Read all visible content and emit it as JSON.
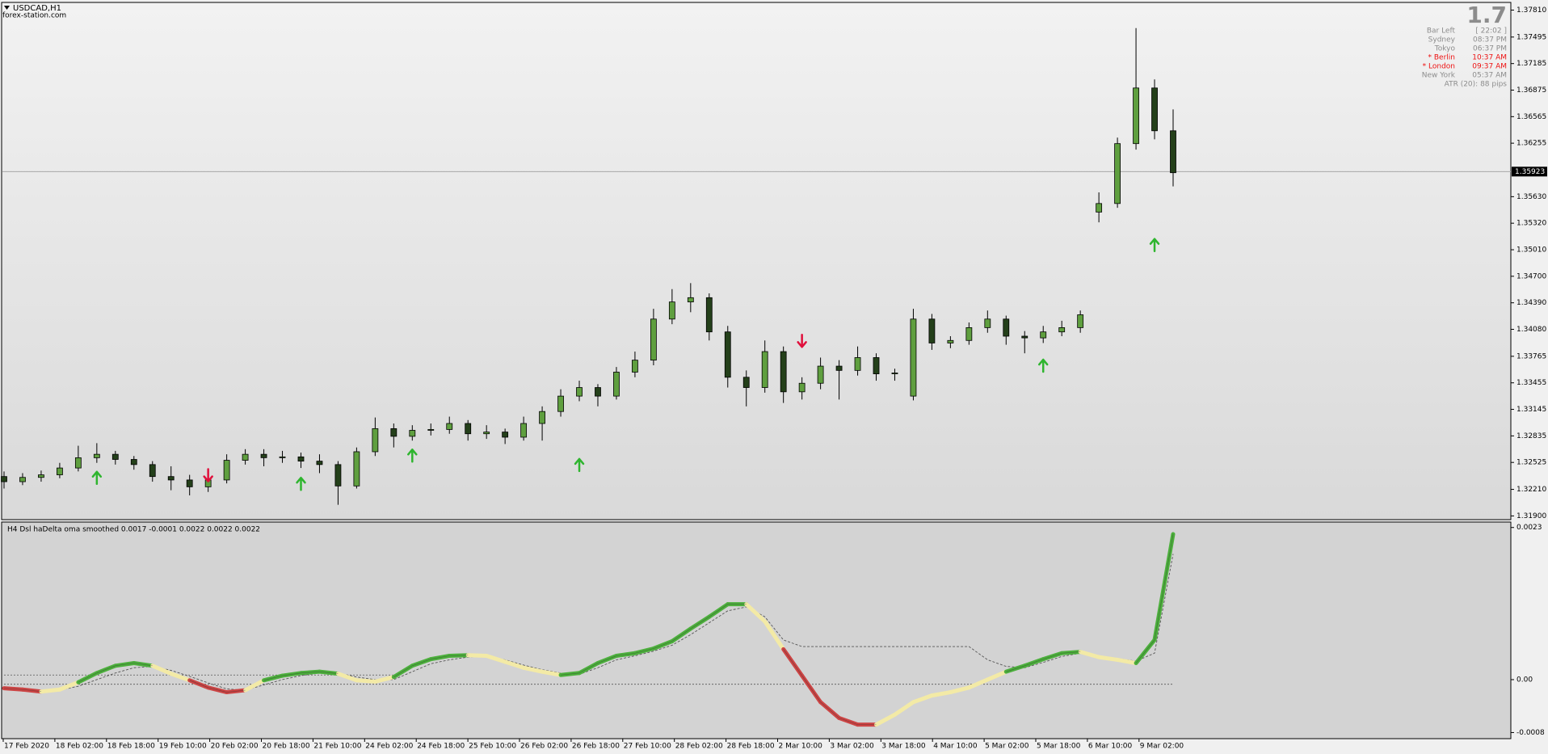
{
  "chart_data": {
    "type": "candlestick",
    "symbol": "USDCAD,H1",
    "source": "forex-station.com",
    "ylim": [
      1.31866,
      1.3789
    ],
    "yticks": [
      {
        "value": 1.3781,
        "label": "1.37810"
      },
      1.37495,
      1.37185,
      1.36875,
      1.36565,
      1.36255,
      {
        "value": 1.3563,
        "label": "1.35630"
      },
      {
        "value": 1.3532,
        "label": "1.35320"
      },
      {
        "value": 1.3501,
        "label": "1.35010"
      },
      {
        "value": 1.347,
        "label": "1.34700"
      },
      {
        "value": 1.3439,
        "label": "1.34390"
      },
      {
        "value": 1.3408,
        "label": "1.34080"
      },
      1.33765,
      1.33455,
      1.33145,
      1.32835,
      1.32525,
      {
        "value": 1.3221,
        "label": "1.32210"
      },
      {
        "value": 1.319,
        "label": "1.31900"
      }
    ],
    "current_price": 1.35923,
    "bull_color": "#5f9f3f",
    "bear_color": "#24401a",
    "grid": false,
    "ohlc": [
      [
        1.3236,
        1.3242,
        1.3222,
        1.323
      ],
      [
        1.323,
        1.324,
        1.3226,
        1.3235
      ],
      [
        1.3235,
        1.3243,
        1.323,
        1.3238
      ],
      [
        1.3238,
        1.3252,
        1.3234,
        1.3246
      ],
      [
        1.3246,
        1.3272,
        1.3242,
        1.3258
      ],
      [
        1.3258,
        1.3275,
        1.3252,
        1.3262
      ],
      [
        1.3262,
        1.3266,
        1.325,
        1.3256
      ],
      [
        1.3256,
        1.326,
        1.3244,
        1.325
      ],
      [
        1.325,
        1.3254,
        1.323,
        1.3236
      ],
      [
        1.3236,
        1.3248,
        1.322,
        1.3232
      ],
      [
        1.3232,
        1.3238,
        1.3214,
        1.3224
      ],
      [
        1.3224,
        1.324,
        1.3218,
        1.3232
      ],
      [
        1.3232,
        1.3262,
        1.3228,
        1.3255
      ],
      [
        1.3255,
        1.3268,
        1.325,
        1.3262
      ],
      [
        1.3262,
        1.3268,
        1.3248,
        1.3258
      ],
      [
        1.3258,
        1.3266,
        1.3252,
        1.3259
      ],
      [
        1.3259,
        1.3264,
        1.3246,
        1.3254
      ],
      [
        1.3254,
        1.3262,
        1.324,
        1.325
      ],
      [
        1.325,
        1.3254,
        1.3203,
        1.3225
      ],
      [
        1.3225,
        1.327,
        1.3222,
        1.3265
      ],
      [
        1.3265,
        1.3305,
        1.326,
        1.3292
      ],
      [
        1.3292,
        1.3298,
        1.327,
        1.3283
      ],
      [
        1.3283,
        1.3296,
        1.3278,
        1.329
      ],
      [
        1.329,
        1.3298,
        1.3284,
        1.3291
      ],
      [
        1.3291,
        1.3306,
        1.3286,
        1.3298
      ],
      [
        1.3298,
        1.3302,
        1.3278,
        1.3286
      ],
      [
        1.3286,
        1.3296,
        1.328,
        1.3288
      ],
      [
        1.3288,
        1.3292,
        1.3274,
        1.3282
      ],
      [
        1.3282,
        1.3306,
        1.3278,
        1.3298
      ],
      [
        1.3298,
        1.3318,
        1.3278,
        1.3312
      ],
      [
        1.3312,
        1.3338,
        1.3306,
        1.333
      ],
      [
        1.333,
        1.3348,
        1.3324,
        1.334
      ],
      [
        1.334,
        1.3344,
        1.3318,
        1.333
      ],
      [
        1.333,
        1.3364,
        1.3326,
        1.3358
      ],
      [
        1.3358,
        1.3382,
        1.3352,
        1.3372
      ],
      [
        1.3372,
        1.3432,
        1.3366,
        1.342
      ],
      [
        1.342,
        1.3455,
        1.3414,
        1.344
      ],
      [
        1.344,
        1.3462,
        1.3428,
        1.3445
      ],
      [
        1.3445,
        1.345,
        1.3395,
        1.3405
      ],
      [
        1.3405,
        1.3412,
        1.334,
        1.3352
      ],
      [
        1.3352,
        1.336,
        1.3318,
        1.334
      ],
      [
        1.334,
        1.3395,
        1.3334,
        1.3382
      ],
      [
        1.3382,
        1.3388,
        1.3322,
        1.3335
      ],
      [
        1.3335,
        1.3352,
        1.3326,
        1.3345
      ],
      [
        1.3345,
        1.3375,
        1.3338,
        1.3365
      ],
      [
        1.3365,
        1.3372,
        1.3326,
        1.336
      ],
      [
        1.336,
        1.3388,
        1.3354,
        1.3375
      ],
      [
        1.3375,
        1.338,
        1.3348,
        1.3356
      ],
      [
        1.3356,
        1.3362,
        1.3348,
        1.3357
      ],
      [
        1.333,
        1.3432,
        1.3325,
        1.342
      ],
      [
        1.342,
        1.3426,
        1.3384,
        1.3392
      ],
      [
        1.3392,
        1.34,
        1.3386,
        1.3395
      ],
      [
        1.3395,
        1.3416,
        1.339,
        1.341
      ],
      [
        1.341,
        1.343,
        1.3404,
        1.342
      ],
      [
        1.342,
        1.3424,
        1.339,
        1.34
      ],
      [
        1.34,
        1.3406,
        1.338,
        1.3398
      ],
      [
        1.3398,
        1.3412,
        1.3392,
        1.3405
      ],
      [
        1.3405,
        1.3418,
        1.34,
        1.341
      ],
      [
        1.341,
        1.343,
        1.3404,
        1.3425
      ],
      [
        1.3545,
        1.3568,
        1.3533,
        1.3555
      ],
      [
        1.3555,
        1.3632,
        1.355,
        1.3625
      ],
      [
        1.3625,
        1.376,
        1.3618,
        1.369
      ],
      [
        1.369,
        1.37,
        1.363,
        1.364
      ],
      [
        1.364,
        1.3665,
        1.3575,
        1.3591
      ]
    ],
    "signals": [
      {
        "candle": 5,
        "price": 1.3234,
        "direction": "up",
        "color": "#2fb52f"
      },
      {
        "candle": 11,
        "price": 1.3238,
        "direction": "down",
        "color": "#e0103c"
      },
      {
        "candle": 16,
        "price": 1.3227,
        "direction": "up",
        "color": "#2fb52f"
      },
      {
        "candle": 22,
        "price": 1.326,
        "direction": "up",
        "color": "#2fb52f"
      },
      {
        "candle": 31,
        "price": 1.3249,
        "direction": "up",
        "color": "#2fb52f"
      },
      {
        "candle": 43,
        "price": 1.3395,
        "direction": "down",
        "color": "#e0103c"
      },
      {
        "candle": 56,
        "price": 1.3365,
        "direction": "up",
        "color": "#2fb52f"
      },
      {
        "candle": 62,
        "price": 1.3506,
        "direction": "up",
        "color": "#2fb52f"
      }
    ],
    "x_labels": [
      "17 Feb 2020",
      "18 Feb 02:00",
      "18 Feb 18:00",
      "19 Feb 10:00",
      "20 Feb 02:00",
      "20 Feb 18:00",
      "21 Feb 10:00",
      "24 Feb 02:00",
      "24 Feb 18:00",
      "25 Feb 10:00",
      "26 Feb 02:00",
      "26 Feb 18:00",
      "27 Feb 10:00",
      "28 Feb 02:00",
      "28 Feb 18:00",
      "2 Mar 10:00",
      "3 Mar 02:00",
      "3 Mar 18:00",
      "4 Mar 10:00",
      "5 Mar 02:00",
      "5 Mar 18:00",
      "6 Mar 10:00",
      "9 Mar 02:00"
    ],
    "info": {
      "big": "1.7",
      "rows": [
        {
          "label": "Bar Left",
          "value": "[ 22:02 ]",
          "color": "#8c8c8c"
        },
        {
          "label": "Sydney",
          "value": "08:37 PM",
          "color": "#8c8c8c"
        },
        {
          "label": "Tokyo",
          "value": "06:37 PM",
          "color": "#8c8c8c"
        },
        {
          "label": "* Berlin",
          "value": "10:37 AM",
          "color": "#ee1111"
        },
        {
          "label": "* London",
          "value": "09:37 AM",
          "color": "#ee1111"
        },
        {
          "label": "New York",
          "value": "05:37 AM",
          "color": "#8c8c8c"
        }
      ],
      "atr": "ATR (20): 88 pips"
    },
    "indicator": {
      "type": "line",
      "title": "H4 Dsl haDelta oma smoothed 0.0017 -0.0001 0.0022 0.0022 0.0022",
      "ylim": [
        -0.00088,
        0.00237
      ],
      "yticks": [
        0.0023,
        {
          "value": 0,
          "label": "0.00"
        },
        -0.0008
      ],
      "colors": {
        "green": "#4caf3c",
        "red": "#cc4444",
        "yellow": "#f3eaa6"
      },
      "values": [
        -0.00013,
        -0.00015,
        -0.00018,
        -0.00015,
        -4e-05,
        0.0001,
        0.00021,
        0.00025,
        0.00021,
        9e-05,
        -1e-05,
        -0.00012,
        -0.00019,
        -0.00016,
        -1e-05,
        6e-05,
        0.0001,
        0.00012,
        9e-05,
        -1e-05,
        -3e-05,
        4e-05,
        0.00021,
        0.00031,
        0.00036,
        0.00037,
        0.00036,
        0.00027,
        0.00018,
        0.00012,
        7e-05,
        0.0001,
        0.00025,
        0.00036,
        0.0004,
        0.00047,
        0.00058,
        0.00077,
        0.00095,
        0.00114,
        0.00114,
        0.00088,
        0.00046,
        6e-05,
        -0.00034,
        -0.00058,
        -0.00068,
        -0.00068,
        -0.00053,
        -0.00034,
        -0.00024,
        -0.00019,
        -0.00012,
        0,
        0.00012,
        0.00021,
        0.00031,
        0.0004,
        0.00042,
        0.00034,
        0.0003,
        0.00025,
        0.0006,
        0.0022
      ],
      "states": [
        "red",
        "red",
        "red",
        "yellow",
        "yellow",
        "green",
        "green",
        "green",
        "green",
        "yellow",
        "yellow",
        "red",
        "red",
        "red",
        "yellow",
        "green",
        "green",
        "green",
        "green",
        "yellow",
        "yellow",
        "yellow",
        "green",
        "green",
        "green",
        "green",
        "yellow",
        "yellow",
        "yellow",
        "yellow",
        "yellow",
        "green",
        "green",
        "green",
        "green",
        "green",
        "green",
        "green",
        "green",
        "green",
        "green",
        "yellow",
        "yellow",
        "red",
        "red",
        "red",
        "red",
        "red",
        "yellow",
        "yellow",
        "yellow",
        "yellow",
        "yellow",
        "yellow",
        "yellow",
        "green",
        "green",
        "green",
        "green",
        "yellow",
        "yellow",
        "yellow",
        "green",
        "green"
      ],
      "signal": {
        "color": "#555555",
        "values": [
          -0.00012,
          -0.00014,
          -0.00016,
          -0.00016,
          -0.0001,
          0,
          0.0001,
          0.00018,
          0.0002,
          0.00014,
          5e-05,
          -5e-05,
          -0.00014,
          -0.00016,
          -8e-05,
          0,
          6e-05,
          0.0001,
          0.0001,
          4e-05,
          0,
          0,
          0.00012,
          0.00024,
          0.0003,
          0.00034,
          0.00035,
          0.0003,
          0.00022,
          0.00015,
          0.0001,
          8e-05,
          0.00018,
          0.0003,
          0.00036,
          0.00043,
          0.00052,
          0.00068,
          0.00086,
          0.00104,
          0.0011,
          0.00095,
          0.0006,
          0.0005,
          0.0005,
          0.0005,
          0.0005,
          0.0005,
          0.0005,
          0.0005,
          0.0005,
          0.0005,
          0.0005,
          0.0003,
          0.0002,
          0.00018,
          0.00026,
          0.00035,
          0.0004,
          0.00036,
          0.00032,
          0.00028,
          0.0004,
          0.0019
        ]
      },
      "levels": [
        {
          "color": "#555555",
          "values": [
            7e-05,
            7e-05,
            7e-05,
            7e-05,
            7e-05,
            7e-05,
            7e-05,
            7e-05,
            7e-05,
            7e-05,
            7e-05,
            7e-05,
            7e-05,
            7e-05,
            7e-05,
            7e-05,
            7e-05,
            7e-05,
            7e-05,
            7e-05,
            7e-05,
            7e-05,
            null,
            null,
            null,
            null,
            null,
            null,
            null,
            null,
            null,
            null,
            null,
            null,
            null,
            null,
            null,
            null,
            null,
            null,
            null,
            null,
            null,
            null,
            null,
            null,
            null,
            null,
            null,
            null,
            null,
            null,
            null,
            null,
            null,
            null,
            null,
            null,
            null,
            null,
            null,
            null,
            null,
            null
          ]
        },
        {
          "color": "#555555",
          "values": [
            -7e-05,
            -7e-05,
            -7e-05,
            -7e-05,
            -7e-05,
            -7e-05,
            -7e-05,
            -7e-05,
            -7e-05,
            -7e-05,
            -7e-05,
            -7e-05,
            -7e-05,
            -7e-05,
            -7e-05,
            -7e-05,
            -7e-05,
            -7e-05,
            -7e-05,
            -7e-05,
            -7e-05,
            -7e-05,
            -7e-05,
            -7e-05,
            -7e-05,
            -7e-05,
            -7e-05,
            -7e-05,
            -7e-05,
            -7e-05,
            -7e-05,
            -7e-05,
            -7e-05,
            -7e-05,
            -7e-05,
            -7e-05,
            -7e-05,
            -7e-05,
            -7e-05,
            -7e-05,
            -7e-05,
            -7e-05,
            -7e-05,
            -7e-05,
            -7e-05,
            -7e-05,
            -7e-05,
            -7e-05,
            -7e-05,
            -7e-05,
            -7e-05,
            -7e-05,
            -7e-05,
            -7e-05,
            -7e-05,
            -7e-05,
            -7e-05,
            -7e-05,
            -7e-05,
            -7e-05,
            -7e-05,
            -7e-05,
            -7e-05,
            -7e-05
          ]
        }
      ]
    }
  }
}
